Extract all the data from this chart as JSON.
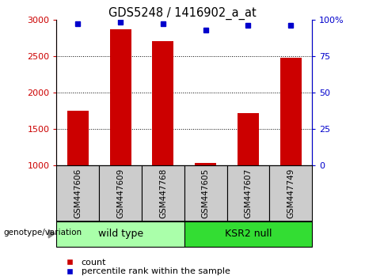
{
  "title": "GDS5248 / 1416902_a_at",
  "samples": [
    "GSM447606",
    "GSM447609",
    "GSM447768",
    "GSM447605",
    "GSM447607",
    "GSM447749"
  ],
  "counts": [
    1750,
    2870,
    2700,
    1030,
    1720,
    2480
  ],
  "percentile_ranks": [
    97,
    98,
    97,
    93,
    96,
    96
  ],
  "ylim_left": [
    1000,
    3000
  ],
  "ylim_right": [
    0,
    100
  ],
  "yticks_left": [
    1000,
    1500,
    2000,
    2500,
    3000
  ],
  "yticks_right": [
    0,
    25,
    50,
    75,
    100
  ],
  "bar_color": "#cc0000",
  "percentile_color": "#0000cc",
  "genotype_groups": [
    {
      "label": "wild type",
      "indices": [
        0,
        1,
        2
      ],
      "color": "#aaffaa"
    },
    {
      "label": "KSR2 null",
      "indices": [
        3,
        4,
        5
      ],
      "color": "#33dd33"
    }
  ],
  "legend_count_label": "count",
  "legend_percentile_label": "percentile rank within the sample",
  "genotype_label": "genotype/variation",
  "left_tick_color": "#cc0000",
  "right_tick_color": "#0000cc",
  "sample_box_color": "#cccccc",
  "bar_width": 0.5
}
